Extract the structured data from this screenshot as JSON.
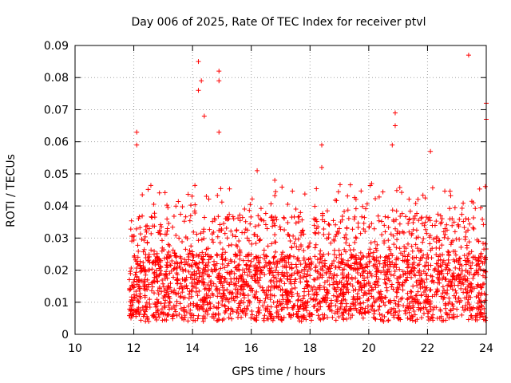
{
  "chart_data": {
    "type": "scatter",
    "title": "Day 006 of 2025, Rate Of TEC Index for receiver ptvl",
    "xlabel": "GPS time / hours",
    "ylabel": "ROTI / TECUs",
    "xlim": [
      10,
      24
    ],
    "ylim": [
      0,
      0.09
    ],
    "xticks": [
      10,
      12,
      14,
      16,
      18,
      20,
      22,
      24
    ],
    "xtick_labels": [
      "10",
      "12",
      "14",
      "16",
      "18",
      "20",
      "22",
      "24"
    ],
    "yticks": [
      0,
      0.01,
      0.02,
      0.03,
      0.04,
      0.05,
      0.06,
      0.07,
      0.08,
      0.09
    ],
    "ytick_labels": [
      "0",
      "0.01",
      "0.02",
      "0.03",
      "0.04",
      "0.05",
      "0.06",
      "0.07",
      "0.08",
      "0.09"
    ],
    "grid": true,
    "marker": "+",
    "marker_color": "#ff0000",
    "series": [
      {
        "name": "ROTI",
        "x_range": [
          11.85,
          24.0
        ],
        "typical_range": [
          0.004,
          0.025
        ],
        "notable_points": [
          {
            "x": 12.1,
            "y": 0.063
          },
          {
            "x": 12.1,
            "y": 0.059
          },
          {
            "x": 14.2,
            "y": 0.085
          },
          {
            "x": 14.2,
            "y": 0.076
          },
          {
            "x": 14.3,
            "y": 0.079
          },
          {
            "x": 14.4,
            "y": 0.068
          },
          {
            "x": 14.9,
            "y": 0.082
          },
          {
            "x": 14.9,
            "y": 0.079
          },
          {
            "x": 14.9,
            "y": 0.063
          },
          {
            "x": 16.2,
            "y": 0.051
          },
          {
            "x": 16.8,
            "y": 0.048
          },
          {
            "x": 18.4,
            "y": 0.059
          },
          {
            "x": 18.4,
            "y": 0.052
          },
          {
            "x": 20.9,
            "y": 0.069
          },
          {
            "x": 20.9,
            "y": 0.065
          },
          {
            "x": 20.8,
            "y": 0.059
          },
          {
            "x": 22.1,
            "y": 0.057
          },
          {
            "x": 23.4,
            "y": 0.087
          },
          {
            "x": 24.0,
            "y": 0.072
          },
          {
            "x": 24.0,
            "y": 0.067
          }
        ]
      }
    ]
  }
}
